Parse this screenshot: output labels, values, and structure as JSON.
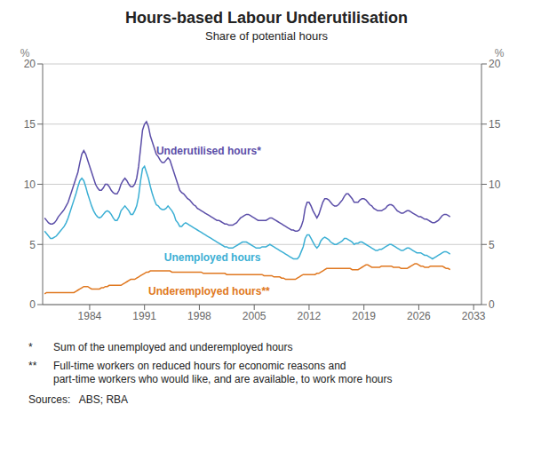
{
  "chart_data": {
    "type": "line",
    "title": "Hours-based Labour Underutilisation",
    "subtitle": "Share of potential hours",
    "ylabel": "%",
    "y2label": "%",
    "xlim": [
      1978,
      2034
    ],
    "xticks": [
      1984,
      1991,
      1998,
      2005,
      2012,
      2019,
      2026,
      2033
    ],
    "ylim": [
      0,
      20
    ],
    "yticks": [
      0,
      5,
      10,
      15,
      20
    ],
    "y2lim": [
      0,
      20
    ],
    "y2ticks": [
      0,
      5,
      10,
      15,
      20
    ],
    "grid": "y",
    "x": [
      1978.25,
      1978.5,
      1978.75,
      1979,
      1979.25,
      1979.5,
      1979.75,
      1980,
      1980.25,
      1980.5,
      1980.75,
      1981,
      1981.25,
      1981.5,
      1981.75,
      1982,
      1982.25,
      1982.5,
      1982.75,
      1983,
      1983.25,
      1983.5,
      1983.75,
      1984,
      1984.25,
      1984.5,
      1984.75,
      1985,
      1985.25,
      1985.5,
      1985.75,
      1986,
      1986.25,
      1986.5,
      1986.75,
      1987,
      1987.25,
      1987.5,
      1987.75,
      1988,
      1988.25,
      1988.5,
      1988.75,
      1989,
      1989.25,
      1989.5,
      1989.75,
      1990,
      1990.25,
      1990.5,
      1990.75,
      1991,
      1991.25,
      1991.5,
      1991.75,
      1992,
      1992.25,
      1992.5,
      1992.75,
      1993,
      1993.25,
      1993.5,
      1993.75,
      1994,
      1994.25,
      1994.5,
      1994.75,
      1995,
      1995.25,
      1995.5,
      1995.75,
      1996,
      1996.25,
      1996.5,
      1996.75,
      1997,
      1997.25,
      1997.5,
      1997.75,
      1998,
      1998.25,
      1998.5,
      1998.75,
      1999,
      1999.25,
      1999.5,
      1999.75,
      2000,
      2000.25,
      2000.5,
      2000.75,
      2001,
      2001.25,
      2001.5,
      2001.75,
      2002,
      2002.25,
      2002.5,
      2002.75,
      2003,
      2003.25,
      2003.5,
      2003.75,
      2004,
      2004.25,
      2004.5,
      2004.75,
      2005,
      2005.25,
      2005.5,
      2005.75,
      2006,
      2006.25,
      2006.5,
      2006.75,
      2007,
      2007.25,
      2007.5,
      2007.75,
      2008,
      2008.25,
      2008.5,
      2008.75,
      2009,
      2009.25,
      2009.5,
      2009.75,
      2010,
      2010.25,
      2010.5,
      2010.75,
      2011,
      2011.25,
      2011.5,
      2011.75,
      2012,
      2012.25,
      2012.5,
      2012.75,
      2013,
      2013.25,
      2013.5,
      2013.75,
      2014,
      2014.25,
      2014.5,
      2014.75,
      2015,
      2015.25,
      2015.5,
      2015.75,
      2016,
      2016.25,
      2016.5,
      2016.75,
      2017,
      2017.25,
      2017.5,
      2017.75,
      2018,
      2018.25,
      2018.5,
      2018.75,
      2019,
      2019.25,
      2019.5,
      2019.75,
      2020,
      2020.25,
      2020.5,
      2020.75,
      2021,
      2021.25,
      2021.5,
      2021.75,
      2022,
      2022.25,
      2022.5,
      2022.75,
      2023,
      2023.25,
      2023.5,
      2023.75,
      2024,
      2024.25,
      2024.5,
      2024.75,
      2025,
      2025.25,
      2025.5,
      2025.75,
      2026,
      2026.25,
      2026.5,
      2026.75,
      2027,
      2027.25,
      2027.5,
      2027.75,
      2028,
      2028.25,
      2028.5,
      2028.75,
      2029,
      2029.25,
      2029.5,
      2029.75,
      2030
    ],
    "series": [
      {
        "name": "Underutilised hours*",
        "color": "#5B4EA8",
        "values": [
          7.2,
          7.0,
          6.8,
          6.7,
          6.7,
          6.8,
          7.0,
          7.3,
          7.5,
          7.7,
          7.9,
          8.2,
          8.5,
          9.0,
          9.5,
          10.0,
          10.5,
          11.0,
          11.8,
          12.5,
          12.8,
          12.5,
          12.0,
          11.5,
          11.0,
          10.5,
          10.0,
          9.7,
          9.5,
          9.5,
          9.7,
          10.0,
          10.0,
          9.8,
          9.5,
          9.3,
          9.2,
          9.2,
          9.5,
          10.0,
          10.3,
          10.5,
          10.3,
          10.0,
          9.8,
          9.8,
          10.0,
          10.5,
          11.5,
          13.0,
          14.5,
          15.0,
          15.2,
          14.8,
          14.0,
          13.5,
          13.0,
          12.5,
          12.3,
          12.0,
          11.8,
          11.8,
          12.0,
          12.2,
          12.0,
          11.5,
          11.0,
          10.5,
          10.0,
          9.5,
          9.3,
          9.2,
          9.0,
          8.8,
          8.7,
          8.5,
          8.3,
          8.2,
          8.0,
          7.9,
          7.8,
          7.7,
          7.6,
          7.5,
          7.4,
          7.3,
          7.2,
          7.1,
          7.0,
          7.0,
          6.9,
          6.8,
          6.7,
          6.7,
          6.6,
          6.6,
          6.6,
          6.7,
          6.8,
          7.0,
          7.2,
          7.3,
          7.4,
          7.5,
          7.5,
          7.4,
          7.3,
          7.2,
          7.1,
          7.0,
          7.0,
          7.0,
          7.0,
          7.0,
          7.1,
          7.2,
          7.2,
          7.1,
          7.0,
          6.9,
          6.8,
          6.7,
          6.6,
          6.5,
          6.4,
          6.3,
          6.2,
          6.2,
          6.1,
          6.1,
          6.2,
          6.5,
          7.0,
          8.0,
          8.5,
          8.5,
          8.2,
          7.8,
          7.5,
          7.2,
          7.5,
          8.0,
          8.5,
          8.8,
          8.8,
          8.7,
          8.5,
          8.3,
          8.2,
          8.2,
          8.3,
          8.5,
          8.7,
          9.0,
          9.2,
          9.2,
          9.0,
          8.8,
          8.5,
          8.5,
          8.5,
          8.7,
          8.8,
          8.8,
          8.7,
          8.5,
          8.3,
          8.2,
          8.0,
          7.9,
          7.8,
          7.8,
          7.8,
          7.9,
          8.0,
          8.2,
          8.3,
          8.3,
          8.2,
          8.0,
          7.8,
          7.7,
          7.6,
          7.6,
          7.7,
          7.8,
          7.8,
          7.7,
          7.6,
          7.5,
          7.4,
          7.3,
          7.3,
          7.2,
          7.1,
          7.1,
          7.0,
          6.9,
          6.8,
          6.8,
          6.9,
          7.0,
          7.2,
          7.4,
          7.5,
          7.5,
          7.4,
          7.3
        ]
      },
      {
        "name": "Unemployed hours",
        "color": "#3BAFD4",
        "values": [
          6.1,
          5.9,
          5.7,
          5.5,
          5.5,
          5.6,
          5.7,
          5.9,
          6.1,
          6.3,
          6.5,
          6.8,
          7.2,
          7.7,
          8.2,
          8.7,
          9.2,
          9.8,
          10.3,
          10.5,
          10.3,
          9.8,
          9.2,
          8.7,
          8.2,
          7.8,
          7.5,
          7.3,
          7.2,
          7.3,
          7.5,
          7.7,
          7.8,
          7.7,
          7.5,
          7.2,
          7.0,
          7.0,
          7.3,
          7.8,
          8.0,
          8.2,
          8.0,
          7.8,
          7.5,
          7.5,
          7.8,
          8.2,
          9.0,
          10.3,
          11.3,
          11.5,
          11.0,
          10.5,
          9.8,
          9.2,
          8.7,
          8.3,
          8.2,
          8.0,
          7.9,
          7.9,
          8.0,
          8.2,
          8.0,
          7.8,
          7.5,
          7.0,
          6.8,
          6.5,
          6.5,
          6.7,
          6.8,
          6.7,
          6.6,
          6.5,
          6.4,
          6.3,
          6.2,
          6.1,
          6.0,
          5.9,
          5.8,
          5.7,
          5.6,
          5.5,
          5.4,
          5.3,
          5.2,
          5.1,
          5.0,
          4.9,
          4.8,
          4.8,
          4.7,
          4.7,
          4.7,
          4.8,
          4.9,
          5.0,
          5.1,
          5.2,
          5.2,
          5.2,
          5.1,
          5.0,
          4.9,
          4.8,
          4.7,
          4.7,
          4.7,
          4.8,
          4.8,
          4.8,
          4.9,
          5.0,
          4.9,
          4.8,
          4.7,
          4.6,
          4.5,
          4.4,
          4.3,
          4.2,
          4.1,
          4.0,
          3.9,
          3.8,
          3.8,
          3.8,
          4.0,
          4.4,
          4.8,
          5.5,
          5.8,
          5.8,
          5.5,
          5.2,
          4.9,
          4.7,
          4.9,
          5.3,
          5.5,
          5.6,
          5.5,
          5.4,
          5.2,
          5.1,
          5.0,
          5.0,
          5.1,
          5.2,
          5.3,
          5.5,
          5.5,
          5.4,
          5.3,
          5.2,
          5.0,
          5.1,
          5.1,
          5.2,
          5.2,
          5.1,
          5.0,
          4.9,
          4.8,
          4.7,
          4.6,
          4.5,
          4.5,
          4.6,
          4.6,
          4.7,
          4.8,
          4.9,
          5.0,
          5.0,
          4.9,
          4.8,
          4.7,
          4.6,
          4.5,
          4.5,
          4.6,
          4.7,
          4.7,
          4.6,
          4.5,
          4.4,
          4.3,
          4.3,
          4.3,
          4.2,
          4.1,
          4.1,
          4.0,
          3.9,
          3.8,
          3.9,
          4.0,
          4.1,
          4.2,
          4.3,
          4.4,
          4.4,
          4.3,
          4.2
        ]
      },
      {
        "name": "Underemployed hours**",
        "color": "#E07820",
        "values": [
          0.9,
          1.0,
          1.0,
          1.0,
          1.0,
          1.0,
          1.0,
          1.0,
          1.0,
          1.0,
          1.0,
          1.0,
          1.0,
          1.0,
          1.0,
          1.0,
          1.1,
          1.2,
          1.3,
          1.4,
          1.5,
          1.5,
          1.5,
          1.4,
          1.3,
          1.3,
          1.3,
          1.3,
          1.3,
          1.4,
          1.4,
          1.5,
          1.5,
          1.6,
          1.6,
          1.6,
          1.6,
          1.6,
          1.6,
          1.6,
          1.7,
          1.8,
          1.9,
          2.0,
          2.1,
          2.1,
          2.1,
          2.2,
          2.3,
          2.4,
          2.5,
          2.6,
          2.7,
          2.7,
          2.8,
          2.8,
          2.8,
          2.8,
          2.8,
          2.8,
          2.8,
          2.8,
          2.8,
          2.8,
          2.8,
          2.7,
          2.7,
          2.7,
          2.7,
          2.7,
          2.7,
          2.7,
          2.7,
          2.7,
          2.7,
          2.7,
          2.7,
          2.7,
          2.7,
          2.7,
          2.7,
          2.6,
          2.6,
          2.6,
          2.6,
          2.6,
          2.6,
          2.6,
          2.6,
          2.6,
          2.6,
          2.6,
          2.6,
          2.5,
          2.5,
          2.5,
          2.5,
          2.5,
          2.5,
          2.5,
          2.5,
          2.5,
          2.5,
          2.5,
          2.5,
          2.5,
          2.5,
          2.5,
          2.5,
          2.5,
          2.5,
          2.5,
          2.4,
          2.4,
          2.4,
          2.4,
          2.4,
          2.3,
          2.3,
          2.3,
          2.3,
          2.2,
          2.2,
          2.1,
          2.1,
          2.1,
          2.1,
          2.1,
          2.1,
          2.2,
          2.3,
          2.4,
          2.5,
          2.5,
          2.5,
          2.5,
          2.5,
          2.5,
          2.5,
          2.6,
          2.6,
          2.7,
          2.8,
          2.9,
          3.0,
          3.0,
          3.0,
          3.0,
          3.0,
          3.0,
          3.0,
          3.0,
          3.0,
          3.0,
          3.0,
          3.0,
          3.0,
          2.9,
          2.9,
          2.9,
          2.9,
          3.0,
          3.1,
          3.2,
          3.3,
          3.3,
          3.2,
          3.1,
          3.1,
          3.1,
          3.1,
          3.1,
          3.2,
          3.2,
          3.2,
          3.2,
          3.2,
          3.2,
          3.1,
          3.1,
          3.1,
          3.1,
          3.0,
          3.0,
          3.0,
          3.0,
          3.1,
          3.2,
          3.3,
          3.4,
          3.4,
          3.3,
          3.2,
          3.2,
          3.1,
          3.1,
          3.1,
          3.2,
          3.2,
          3.2,
          3.2,
          3.2,
          3.2,
          3.2,
          3.1,
          3.0,
          3.0,
          2.9
        ]
      }
    ],
    "annotations": [
      {
        "text": "Underutilised hours*",
        "x": 1992.5,
        "y": 12.8,
        "color": "#5B4EA8"
      },
      {
        "text": "Unemployed hours",
        "x": 1993.5,
        "y": 3.9,
        "color": "#3BAFD4"
      },
      {
        "text": "Underemployed hours**",
        "x": 1991.5,
        "y": 1.15,
        "color": "#E07820"
      }
    ],
    "footnotes": [
      {
        "bullet": "*",
        "text": "Sum of the unemployed and underemployed hours"
      },
      {
        "bullet": "**",
        "text": "Full-time workers on reduced hours for economic reasons and\npart-time workers who would like, and are available, to work more hours"
      }
    ],
    "sources": "Sources:   ABS; RBA"
  }
}
